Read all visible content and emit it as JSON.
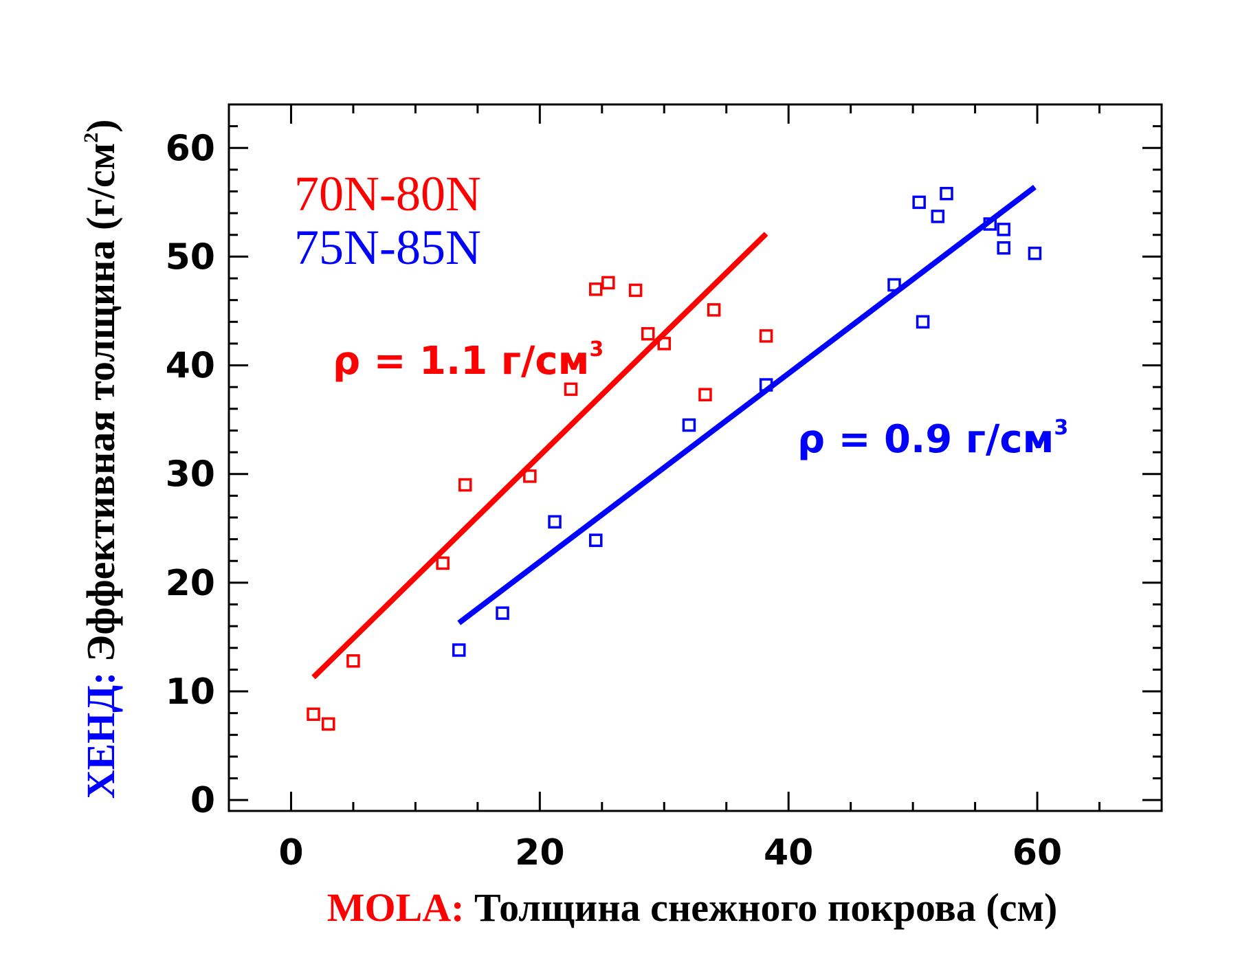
{
  "chart_data": {
    "type": "scatter",
    "xlabel": {
      "prefix": "MOLA:",
      "text": " Толщина снежного покрова (см)",
      "prefix_color": "#ff0000",
      "text_color": "#000000"
    },
    "ylabel": {
      "prefix": "ХЕНД:",
      "text": " Эффективная толщина (г/см",
      "sup": "2",
      "suffix": ")",
      "prefix_color": "#0000ff",
      "text_color": "#000000"
    },
    "xlim": [
      -5,
      70
    ],
    "ylim": [
      -1,
      64
    ],
    "xticks": [
      0,
      20,
      40,
      60
    ],
    "yticks": [
      0,
      10,
      20,
      30,
      40,
      50,
      60
    ],
    "grid": false,
    "legend": {
      "position": "top-left"
    },
    "series": [
      {
        "name": "70N-80N",
        "color": "#ff0000",
        "marker": "open-square",
        "points": [
          [
            1.8,
            7.9
          ],
          [
            3.0,
            7.0
          ],
          [
            5.0,
            12.8
          ],
          [
            12.2,
            21.8
          ],
          [
            14.0,
            29.0
          ],
          [
            19.2,
            29.8
          ],
          [
            22.5,
            37.8
          ],
          [
            24.5,
            47.0
          ],
          [
            25.5,
            47.6
          ],
          [
            27.7,
            46.9
          ],
          [
            28.7,
            42.9
          ],
          [
            30.0,
            42.0
          ],
          [
            33.3,
            37.3
          ],
          [
            34.0,
            45.1
          ],
          [
            38.2,
            42.7
          ]
        ],
        "fit": {
          "x": [
            1.8,
            38.2
          ],
          "y": [
            11.3,
            52.1
          ]
        },
        "annotation": {
          "prefix": "ρ",
          "text": " = 1.1 г/см",
          "sup": "3"
        }
      },
      {
        "name": "75N-85N",
        "color": "#0000ff",
        "marker": "open-square",
        "points": [
          [
            13.5,
            13.8
          ],
          [
            17.0,
            17.2
          ],
          [
            21.2,
            25.6
          ],
          [
            24.5,
            23.9
          ],
          [
            32.0,
            34.5
          ],
          [
            38.2,
            38.2
          ],
          [
            48.5,
            47.4
          ],
          [
            50.5,
            55.0
          ],
          [
            50.8,
            44.0
          ],
          [
            52.0,
            53.7
          ],
          [
            52.7,
            55.8
          ],
          [
            56.2,
            53.0
          ],
          [
            57.3,
            52.5
          ],
          [
            57.3,
            50.8
          ],
          [
            59.8,
            50.3
          ]
        ],
        "fit": {
          "x": [
            13.5,
            59.8
          ],
          "y": [
            16.3,
            56.4
          ]
        },
        "annotation": {
          "prefix": "ρ",
          "text": " = 0.9 г/см",
          "sup": "3"
        }
      }
    ]
  }
}
